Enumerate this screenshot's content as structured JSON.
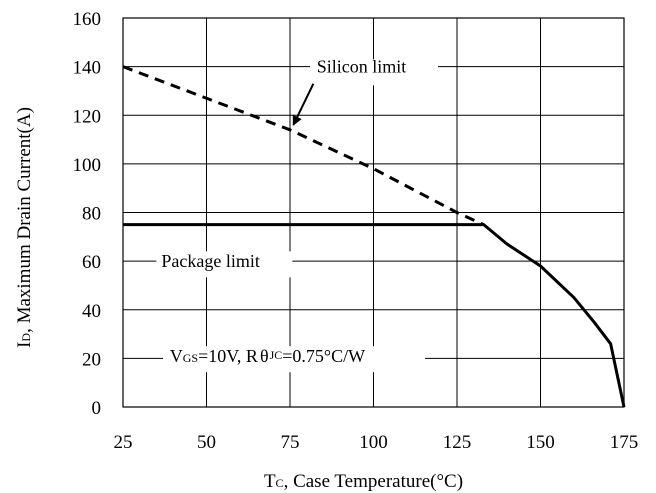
{
  "chart_data": {
    "type": "line",
    "xlabel": {
      "prefix": "T",
      "sub": "C",
      "suffix": ", Case Temperature(°C)"
    },
    "ylabel": {
      "prefix": "I",
      "sub": "D",
      "suffix": ", Maximum Drain Current(A)"
    },
    "xlim": [
      25,
      175
    ],
    "ylim": [
      0,
      160
    ],
    "xticks": [
      25,
      50,
      75,
      100,
      125,
      150,
      175
    ],
    "yticks": [
      0,
      20,
      40,
      60,
      80,
      100,
      120,
      140,
      160
    ],
    "grid": true,
    "series": [
      {
        "name": "Silicon limit",
        "style": "dashed",
        "color": "#000000",
        "x": [
          25,
          50,
          75,
          100,
          125,
          133
        ],
        "y": [
          140,
          127,
          114,
          98,
          80,
          75
        ]
      },
      {
        "name": "Package limit",
        "style": "solid",
        "color": "#000000",
        "x": [
          25,
          133,
          140,
          150,
          160,
          166,
          171,
          175
        ],
        "y": [
          75,
          75,
          67,
          58,
          45,
          35,
          26,
          0
        ]
      }
    ],
    "annotations": {
      "silicon": {
        "text": "Silicon limit",
        "arrow_from": [
          82,
          133
        ],
        "arrow_to": [
          76,
          116
        ]
      },
      "package": {
        "text": "Package limit"
      },
      "condition": {
        "v": "V",
        "v_sub": "GS",
        "mid": "=10V, R",
        "theta": "θ",
        "jc_sub": "JC",
        "end": "=0.75°C/W"
      }
    }
  }
}
